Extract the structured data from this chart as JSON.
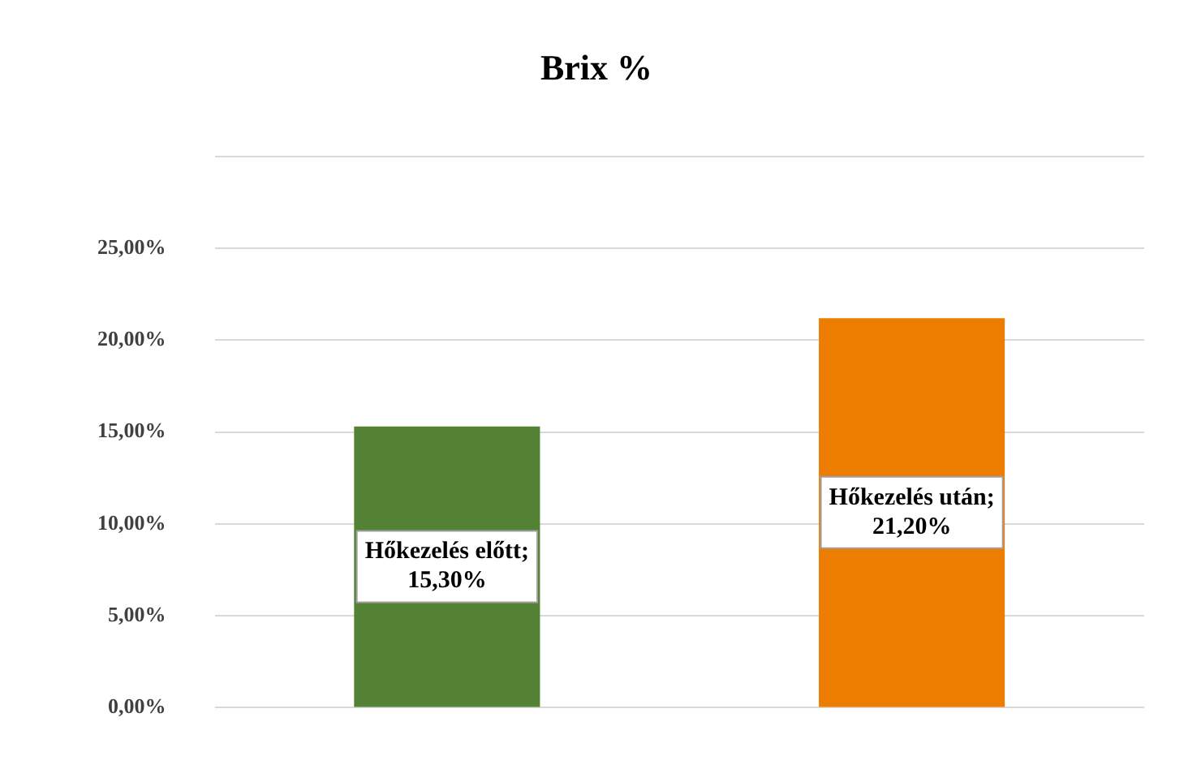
{
  "chart_data": {
    "type": "bar",
    "title": "Brix %",
    "categories": [
      null,
      null
    ],
    "values": [
      15.3,
      21.2
    ],
    "colors": [
      "#548235",
      "#ed7d00"
    ],
    "value_labels": [
      "Hőkezelés előtt; 15,30%",
      "Hőkezelés után; 21,20%"
    ],
    "ylim": [
      0,
      30
    ],
    "yticks": [
      {
        "value": 0,
        "label": "0,00%"
      },
      {
        "value": 5,
        "label": "5,00%"
      },
      {
        "value": 10,
        "label": "10,00%"
      },
      {
        "value": 15,
        "label": "15,00%"
      },
      {
        "value": 20,
        "label": "20,00%"
      },
      {
        "value": 25,
        "label": "25,00%"
      },
      {
        "value": 30,
        "label": null
      }
    ],
    "grid": "y",
    "tick_labels": "y",
    "legend": false
  }
}
